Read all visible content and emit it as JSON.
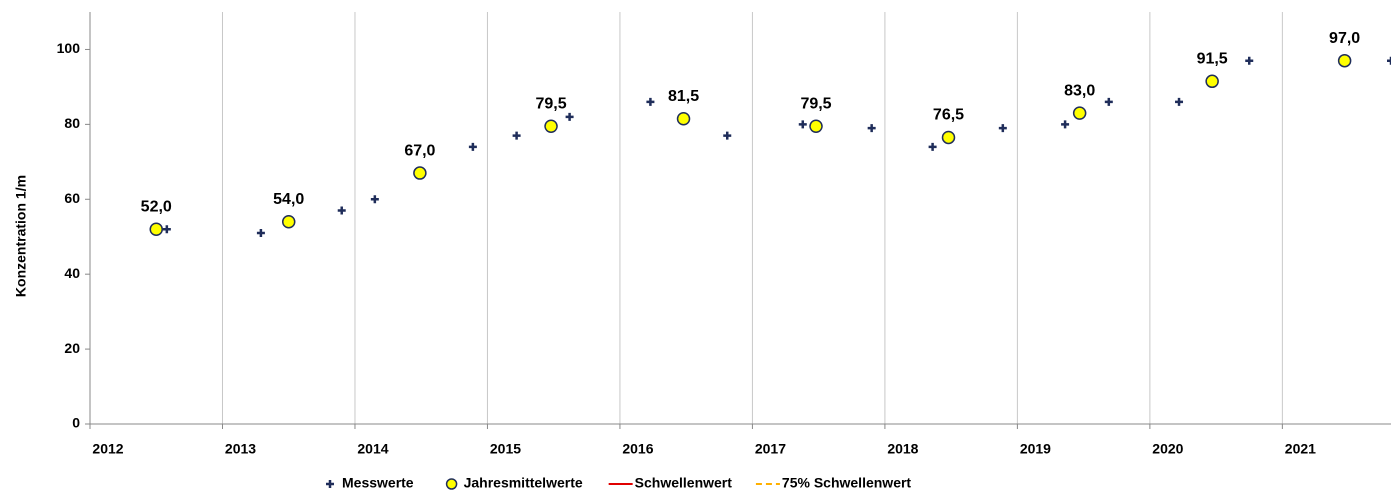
{
  "chart_data": {
    "type": "scatter",
    "y_label": "Konzentration 1/m",
    "xlim": [
      2012,
      2021.82
    ],
    "xticks": [
      2012,
      2013,
      2014,
      2015,
      2016,
      2017,
      2018,
      2019,
      2020,
      2021
    ],
    "ylim": [
      0,
      110
    ],
    "yticks": [
      0,
      20,
      40,
      60,
      80,
      100
    ],
    "grid": true,
    "legend": "bottom",
    "series": [
      {
        "name": "Messwerte",
        "color": "#1f2d5a",
        "marker": "plus",
        "x": [
          2012.58,
          2013.29,
          2013.9,
          2014.15,
          2014.89,
          2015.22,
          2015.62,
          2016.23,
          2016.81,
          2017.38,
          2017.9,
          2018.36,
          2018.89,
          2019.36,
          2019.69,
          2020.22,
          2020.75,
          2021.82
        ],
        "values": [
          52,
          51,
          57,
          60,
          74,
          77,
          82,
          86,
          77,
          80,
          79,
          74,
          79,
          80,
          86,
          86,
          97,
          97
        ]
      },
      {
        "name": "Jahresmittelwerte",
        "color": "#ffff00",
        "marker": "circle",
        "x": [
          2012.5,
          2013.5,
          2014.49,
          2015.48,
          2016.48,
          2017.48,
          2018.48,
          2019.47,
          2020.47,
          2021.47
        ],
        "values": [
          52,
          54,
          67,
          79.5,
          81.5,
          79.5,
          76.5,
          83,
          91.5,
          97
        ],
        "value_labels": [
          "52,0",
          "54,0",
          "67,0",
          "79,5",
          "81,5",
          "79,5",
          "76,5",
          "83,0",
          "91,5",
          "97,0"
        ]
      },
      {
        "name": "Schwellenwert",
        "color": "#e00000",
        "marker": "line",
        "x": [],
        "values": []
      },
      {
        "name": "75% Schwellenwert",
        "color": "#ffb000",
        "marker": "dash",
        "x": [],
        "values": []
      }
    ]
  }
}
